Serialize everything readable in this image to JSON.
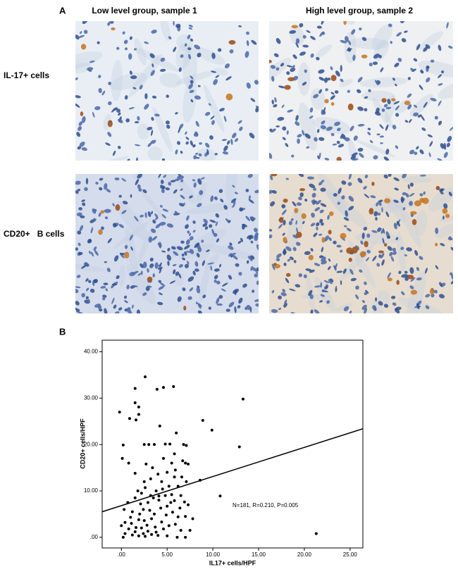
{
  "figure": {
    "panel_a": "A",
    "panel_b": "B",
    "columns": [
      "Low level group, sample 1",
      "High level group, sample 2"
    ],
    "rows": [
      "IL-17+ cells",
      "CD20+   B cells"
    ]
  },
  "chart_data": {
    "type": "scatter",
    "xlabel": "IL17+ cells/HPF",
    "ylabel": "CD20+ cells/HPF",
    "annotation": "N=181, R=0.210, P=0.005",
    "color": "#000000",
    "xlim": [
      -2.1,
      26.4
    ],
    "ylim": [
      -2.3,
      42.5
    ],
    "xticks": [
      {
        "value": 0,
        "label": ".00"
      },
      {
        "value": 5,
        "label": "5.00"
      },
      {
        "value": 10,
        "label": "10.00"
      },
      {
        "value": 15,
        "label": "15.00"
      },
      {
        "value": 20,
        "label": "20.00"
      },
      {
        "value": 25,
        "label": "25.00"
      }
    ],
    "yticks": [
      {
        "value": 0,
        "label": ".00"
      },
      {
        "value": 10,
        "label": "10.00"
      },
      {
        "value": 20,
        "label": "20.00"
      },
      {
        "value": 30,
        "label": "30.00"
      },
      {
        "value": 40,
        "label": "40.00"
      }
    ],
    "fit_line": {
      "x": [
        -2.1,
        26.4
      ],
      "y": [
        5.5,
        23.4
      ]
    },
    "x": [
      13.3,
      21.3,
      12.9,
      10.8,
      9.9,
      8.9,
      8.6,
      -0.2,
      0.9,
      1.6,
      1.5,
      1.9,
      1.9,
      0.1,
      0.8,
      0.2,
      5.7,
      3.9,
      4.6,
      1.5,
      2.6,
      4.2,
      3.6,
      3.0,
      2.5,
      4.8,
      5.3,
      6.0,
      6.8,
      7.1,
      7.0,
      6.7,
      5.8,
      5.5,
      5.0,
      4.6,
      2.7,
      4.0,
      3.2,
      2.5,
      5.8,
      6.2,
      7.1,
      3.8,
      4.5,
      5.2,
      1.8,
      2.2,
      3.5,
      4.1,
      4.8,
      5.5,
      6.5,
      7.3,
      6.9,
      2.9,
      2.1,
      1.5,
      0.7,
      0.3,
      1.2,
      2.4,
      3.1,
      3.6,
      4.3,
      5.0,
      5.6,
      6.2,
      7.0,
      7.8,
      3.3,
      2.5,
      1.9,
      1.1,
      0.4,
      0.0,
      0.8,
      1.6,
      2.2,
      2.8,
      3.7,
      4.4,
      5.2,
      5.9,
      6.5,
      7.5,
      0.4,
      1.2,
      1.9,
      2.6,
      3.3,
      4.0,
      5.0,
      6.1,
      7.0,
      1.5,
      2.9,
      4.6,
      0.2,
      2.4,
      3.8,
      1.0,
      2.0,
      4.9,
      5.8,
      6.4,
      3.2,
      2.6,
      4.4,
      5.9,
      6.6,
      7.3,
      3.4,
      1.5,
      4.1,
      5.4
    ],
    "y": [
      29.8,
      0.8,
      19.5,
      8.9,
      23.1,
      25.2,
      12.3,
      27,
      25.6,
      25.3,
      29,
      28.1,
      26.5,
      17,
      16,
      19.9,
      32.5,
      31.9,
      32.3,
      32.1,
      34.6,
      24,
      20,
      20,
      20,
      20.1,
      20.1,
      22.5,
      20,
      19.8,
      16,
      16.5,
      18,
      16,
      14,
      17,
      15.8,
      13.6,
      12.6,
      12,
      13,
      11,
      12,
      10,
      10.4,
      11,
      10,
      9.5,
      8.5,
      8,
      9,
      9.2,
      9,
      7,
      7.6,
      7.5,
      7.2,
      8.5,
      7.5,
      6,
      5.5,
      6,
      5.8,
      5,
      6.3,
      6.7,
      5.4,
      4.4,
      4.5,
      4,
      4,
      3.6,
      3.8,
      3,
      3.2,
      2.5,
      1.8,
      2.1,
      2,
      2.6,
      2.2,
      3.3,
      2.5,
      2.8,
      1.5,
      1.5,
      0.8,
      0.5,
      0.3,
      0.2,
      0.6,
      0.4,
      0.3,
      0,
      0,
      1.2,
      1.3,
      1.8,
      0,
      0.8,
      1.1,
      4.3,
      5,
      4.8,
      7.9,
      6.3,
      9,
      10.7,
      12,
      14.5,
      13,
      15.8,
      15,
      13.8,
      8.9,
      7.5
    ]
  }
}
